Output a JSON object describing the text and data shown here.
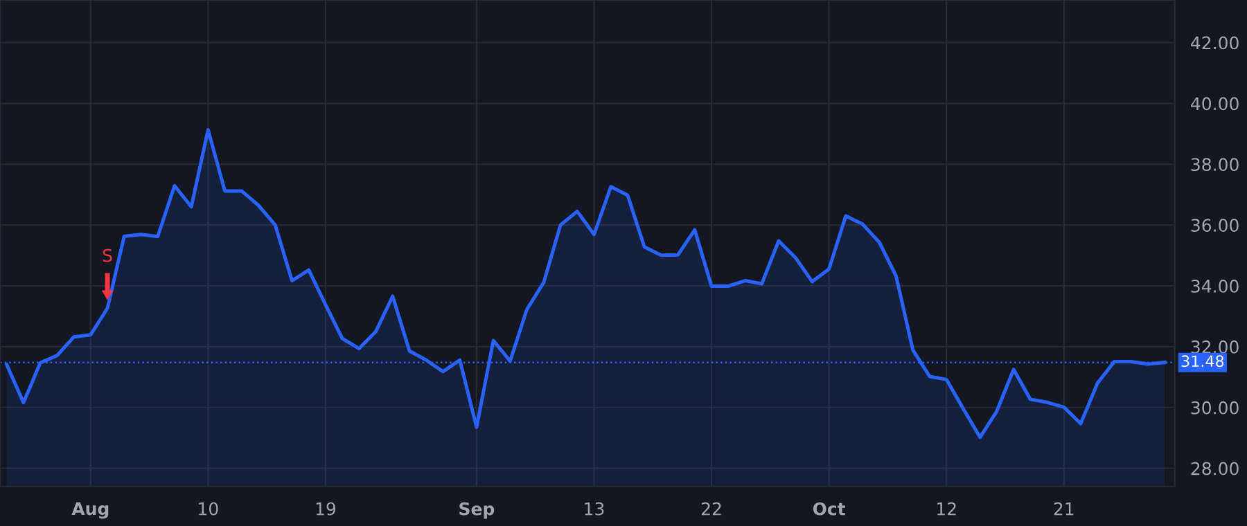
{
  "chart_data": {
    "type": "area",
    "categories": [
      null,
      null,
      null,
      null,
      null,
      "Aug",
      null,
      null,
      null,
      null,
      null,
      null,
      "10",
      null,
      null,
      null,
      null,
      null,
      null,
      "19",
      null,
      null,
      null,
      null,
      null,
      null,
      null,
      null,
      "Sep",
      null,
      null,
      null,
      null,
      null,
      null,
      "13",
      null,
      null,
      null,
      null,
      null,
      null,
      "22",
      null,
      null,
      null,
      null,
      null,
      null,
      "Oct",
      null,
      null,
      null,
      null,
      null,
      null,
      "12",
      null,
      null,
      null,
      null,
      null,
      null,
      "21",
      null,
      null,
      null,
      null,
      null,
      null
    ],
    "series": [
      {
        "color": "#2962ff",
        "values": [
          31.41,
          30.16,
          31.47,
          31.71,
          32.32,
          32.39,
          33.26,
          35.63,
          35.69,
          35.62,
          37.29,
          36.6,
          39.13,
          37.12,
          37.12,
          36.65,
          36.0,
          34.17,
          34.52,
          33.38,
          32.27,
          31.94,
          32.5,
          33.66,
          31.86,
          31.56,
          31.18,
          31.56,
          29.35,
          32.2,
          31.53,
          33.23,
          34.11,
          36.0,
          36.45,
          35.69,
          37.26,
          36.98,
          35.28,
          35.01,
          35.02,
          35.84,
          33.99,
          33.99,
          34.17,
          34.07,
          35.48,
          34.93,
          34.14,
          34.55,
          36.3,
          36.03,
          35.43,
          34.32,
          31.89,
          31.02,
          30.92,
          29.96,
          29.02,
          29.88,
          31.25,
          30.27,
          30.17,
          30.01,
          29.47,
          30.8,
          31.51,
          31.51,
          31.43,
          31.48
        ]
      }
    ],
    "ylim": [
      27.4,
      43.4
    ],
    "yticks": [
      {
        "value": 28,
        "label": "28.00"
      },
      {
        "value": 30,
        "label": "30.00"
      },
      {
        "value": 32,
        "label": "32.00"
      },
      {
        "value": 34,
        "label": "34.00"
      },
      {
        "value": 36,
        "label": "36.00"
      },
      {
        "value": 38,
        "label": "38.00"
      },
      {
        "value": 40,
        "label": "40.00"
      },
      {
        "value": 42,
        "label": "42.00"
      }
    ],
    "ref_lines": [
      {
        "axis": "y",
        "value": 31.48,
        "label": "31.48",
        "color": "#2962ff",
        "line_style": "dotted"
      }
    ],
    "annotations": [
      {
        "text": "S",
        "y": 33.26
      }
    ],
    "grid": true,
    "legend": false,
    "marker": "none",
    "line_style": "solid"
  }
}
